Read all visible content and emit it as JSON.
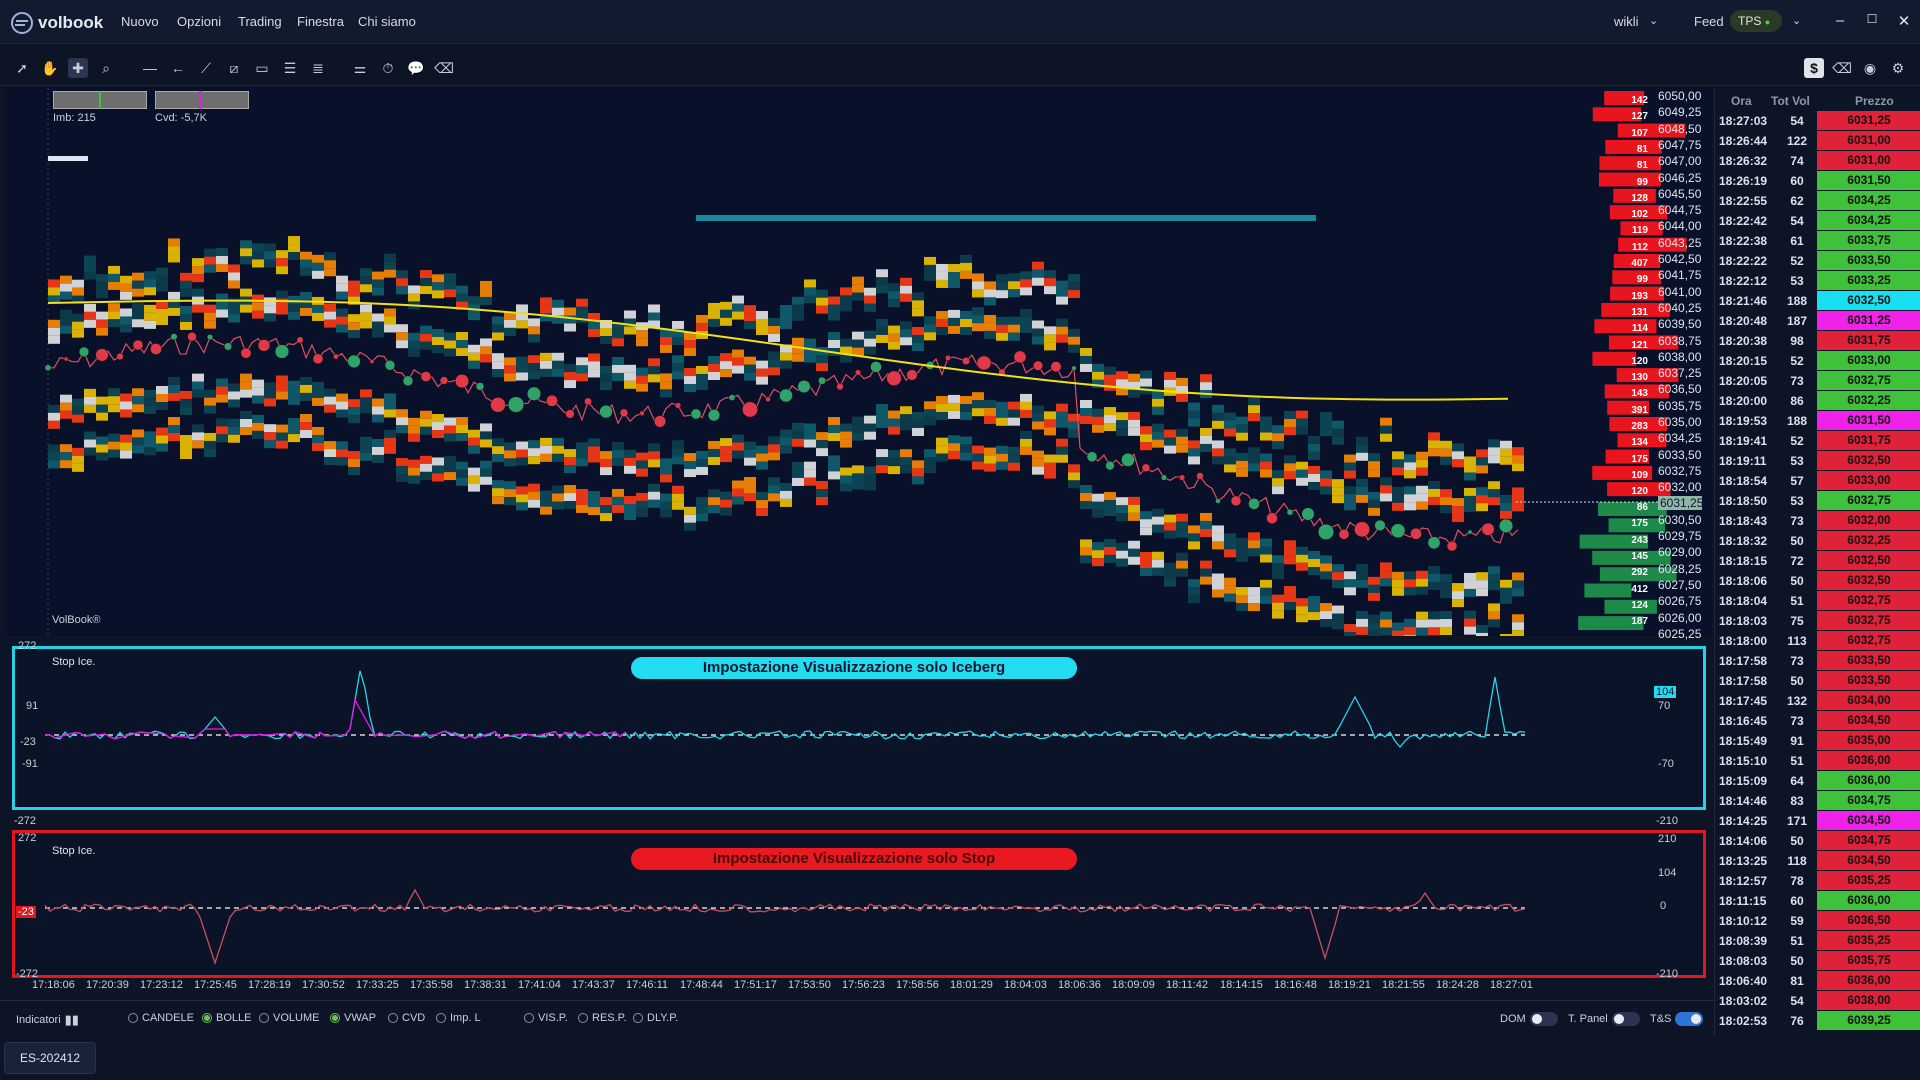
{
  "app": {
    "logo_text": "volbook",
    "menu": [
      "Nuovo",
      "Opzioni",
      "Trading",
      "Finestra",
      "Chi siamo"
    ],
    "user": "wikli",
    "feed_label": "Feed",
    "feed_badge": "TPS"
  },
  "indicators_top": {
    "imb": "Imb: 215",
    "cvd": "Cvd: -5,7K"
  },
  "watermark": "VolBook®",
  "price_axis": [
    "6050,00",
    "6049,25",
    "6048,50",
    "6047,75",
    "6047,00",
    "6046,25",
    "6045,50",
    "6044,75",
    "6044,00",
    "6043,25",
    "6042,50",
    "6041,75",
    "6041,00",
    "6040,25",
    "6039,50",
    "6038,75",
    "6038,00",
    "6037,25",
    "6036,50",
    "6035,75",
    "6035,00",
    "6034,25",
    "6033,50",
    "6032,75",
    "6032,00",
    "6031,25",
    "6030,50",
    "6029,75",
    "6029,00",
    "6028,25",
    "6027,50",
    "6026,75",
    "6026,00",
    "6025,25"
  ],
  "current_price": "6031,25",
  "ask_volumes": [
    "142",
    "127",
    "107",
    "81",
    "81",
    "99",
    "128",
    "102",
    "119",
    "112",
    "407",
    "99",
    "193",
    "131",
    "114",
    "121",
    "120",
    "130",
    "143",
    "391",
    "283",
    "134",
    "175",
    "109",
    "120"
  ],
  "bid_volumes": [
    "86",
    "175",
    "243",
    "145",
    "292",
    "412",
    "124",
    "187"
  ],
  "panel1": {
    "label": "Stop Ice.",
    "banner": "Impostazione Visualizzazione solo Iceberg",
    "left_ticks": [
      "272",
      "91",
      "-23",
      "-91",
      "-272"
    ],
    "right_ticks": [
      "104",
      "70",
      "-70",
      "-210"
    ]
  },
  "panel2": {
    "label": "Stop Ice.",
    "banner": "Impostazione Visualizzazione solo Stop",
    "left_ticks": [
      "272",
      "-23",
      "-272"
    ],
    "right_ticks": [
      "210",
      "104",
      "0",
      "-210"
    ]
  },
  "time_axis": [
    "17:18:06",
    "17:20:39",
    "17:23:12",
    "17:25:45",
    "17:28:19",
    "17:30:52",
    "17:33:25",
    "17:35:58",
    "17:38:31",
    "17:41:04",
    "17:43:37",
    "17:46:11",
    "17:48:44",
    "17:51:17",
    "17:53:50",
    "17:56:23",
    "17:58:56",
    "18:01:29",
    "18:04:03",
    "18:06:36",
    "18:09:09",
    "18:11:42",
    "18:14:15",
    "18:16:48",
    "18:19:21",
    "18:21:55",
    "18:24:28",
    "18:27:01"
  ],
  "footer": {
    "indicators_label": "Indicatori",
    "options": [
      {
        "label": "CANDELE",
        "on": false
      },
      {
        "label": "BOLLE",
        "on": true
      },
      {
        "label": "VOLUME",
        "on": false
      },
      {
        "label": "VWAP",
        "on": true
      },
      {
        "label": "CVD",
        "on": false
      },
      {
        "label": "Imp. L",
        "on": false
      },
      {
        "label": "VIS.P.",
        "on": false
      },
      {
        "label": "RES.P.",
        "on": false
      },
      {
        "label": "DLY.P.",
        "on": false
      }
    ],
    "toggles": [
      {
        "label": "DOM",
        "on": false
      },
      {
        "label": "T. Panel",
        "on": false
      },
      {
        "label": "T&S",
        "on": true
      }
    ]
  },
  "tab": "ES-202412",
  "ts_headers": [
    "Ora",
    "Tot Vol",
    "Prezzo"
  ],
  "ts_rows": [
    {
      "t": "18:27:03",
      "v": "54",
      "p": "6031,25",
      "c": "#e0213a"
    },
    {
      "t": "18:26:44",
      "v": "122",
      "p": "6031,00",
      "c": "#e0213a"
    },
    {
      "t": "18:26:32",
      "v": "74",
      "p": "6031,00",
      "c": "#e0213a"
    },
    {
      "t": "18:26:19",
      "v": "60",
      "p": "6031,50",
      "c": "#3fc13b"
    },
    {
      "t": "18:22:55",
      "v": "62",
      "p": "6034,25",
      "c": "#3fc13b"
    },
    {
      "t": "18:22:42",
      "v": "54",
      "p": "6034,25",
      "c": "#3fc13b"
    },
    {
      "t": "18:22:38",
      "v": "61",
      "p": "6033,75",
      "c": "#3fc13b"
    },
    {
      "t": "18:22:22",
      "v": "52",
      "p": "6033,50",
      "c": "#3fc13b"
    },
    {
      "t": "18:22:12",
      "v": "53",
      "p": "6033,25",
      "c": "#3fc13b"
    },
    {
      "t": "18:21:46",
      "v": "188",
      "p": "6032,50",
      "c": "#19e0f0"
    },
    {
      "t": "18:20:48",
      "v": "187",
      "p": "6031,25",
      "c": "#f021e8"
    },
    {
      "t": "18:20:38",
      "v": "98",
      "p": "6031,75",
      "c": "#e0213a"
    },
    {
      "t": "18:20:15",
      "v": "52",
      "p": "6033,00",
      "c": "#3fc13b"
    },
    {
      "t": "18:20:05",
      "v": "73",
      "p": "6032,75",
      "c": "#3fc13b"
    },
    {
      "t": "18:20:00",
      "v": "86",
      "p": "6032,25",
      "c": "#3fc13b"
    },
    {
      "t": "18:19:53",
      "v": "188",
      "p": "6031,50",
      "c": "#f021e8"
    },
    {
      "t": "18:19:41",
      "v": "52",
      "p": "6031,75",
      "c": "#e0213a"
    },
    {
      "t": "18:19:11",
      "v": "53",
      "p": "6032,50",
      "c": "#e0213a"
    },
    {
      "t": "18:18:54",
      "v": "57",
      "p": "6033,00",
      "c": "#e0213a"
    },
    {
      "t": "18:18:50",
      "v": "53",
      "p": "6032,75",
      "c": "#3fc13b"
    },
    {
      "t": "18:18:43",
      "v": "73",
      "p": "6032,00",
      "c": "#e0213a"
    },
    {
      "t": "18:18:32",
      "v": "50",
      "p": "6032,25",
      "c": "#e0213a"
    },
    {
      "t": "18:18:15",
      "v": "72",
      "p": "6032,50",
      "c": "#e0213a"
    },
    {
      "t": "18:18:06",
      "v": "50",
      "p": "6032,50",
      "c": "#e0213a"
    },
    {
      "t": "18:18:04",
      "v": "51",
      "p": "6032,75",
      "c": "#e0213a"
    },
    {
      "t": "18:18:03",
      "v": "75",
      "p": "6032,75",
      "c": "#e0213a"
    },
    {
      "t": "18:18:00",
      "v": "113",
      "p": "6032,75",
      "c": "#e0213a"
    },
    {
      "t": "18:17:58",
      "v": "73",
      "p": "6033,50",
      "c": "#e0213a"
    },
    {
      "t": "18:17:58",
      "v": "50",
      "p": "6033,50",
      "c": "#e0213a"
    },
    {
      "t": "18:17:45",
      "v": "132",
      "p": "6034,00",
      "c": "#e0213a"
    },
    {
      "t": "18:16:45",
      "v": "73",
      "p": "6034,50",
      "c": "#e0213a"
    },
    {
      "t": "18:15:49",
      "v": "91",
      "p": "6035,00",
      "c": "#e0213a"
    },
    {
      "t": "18:15:10",
      "v": "51",
      "p": "6036,00",
      "c": "#e0213a"
    },
    {
      "t": "18:15:09",
      "v": "64",
      "p": "6036,00",
      "c": "#3fc13b"
    },
    {
      "t": "18:14:46",
      "v": "83",
      "p": "6034,75",
      "c": "#3fc13b"
    },
    {
      "t": "18:14:25",
      "v": "171",
      "p": "6034,50",
      "c": "#f021e8"
    },
    {
      "t": "18:14:06",
      "v": "50",
      "p": "6034,75",
      "c": "#e0213a"
    },
    {
      "t": "18:13:25",
      "v": "118",
      "p": "6034,50",
      "c": "#e0213a"
    },
    {
      "t": "18:12:57",
      "v": "78",
      "p": "6035,25",
      "c": "#e0213a"
    },
    {
      "t": "18:11:15",
      "v": "60",
      "p": "6036,00",
      "c": "#3fc13b"
    },
    {
      "t": "18:10:12",
      "v": "59",
      "p": "6036,50",
      "c": "#e0213a"
    },
    {
      "t": "18:08:39",
      "v": "51",
      "p": "6035,25",
      "c": "#e0213a"
    },
    {
      "t": "18:08:03",
      "v": "50",
      "p": "6035,75",
      "c": "#e0213a"
    },
    {
      "t": "18:06:40",
      "v": "81",
      "p": "6036,00",
      "c": "#e0213a"
    },
    {
      "t": "18:03:02",
      "v": "54",
      "p": "6038,00",
      "c": "#e0213a"
    },
    {
      "t": "18:02:53",
      "v": "76",
      "p": "6039,25",
      "c": "#3fc13b"
    }
  ]
}
